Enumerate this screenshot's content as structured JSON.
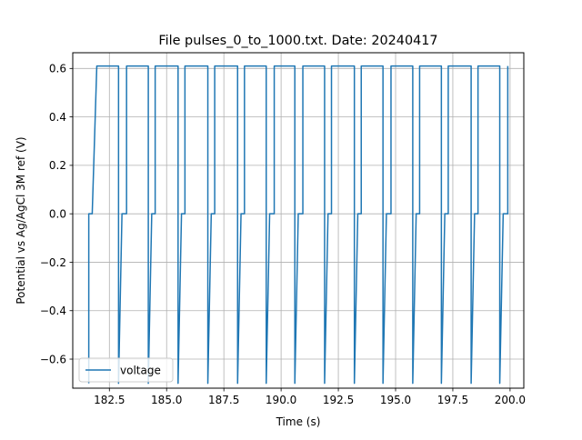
{
  "chart_data": {
    "type": "line",
    "title": "File pulses_0_to_1000.txt. Date: 20240417",
    "xlabel": "Time (s)",
    "ylabel": "Potential vs Ag/AgCl 3M ref (V)",
    "xlim": [
      80.85,
      200.6
    ],
    "ylim": [
      -0.72,
      0.665
    ],
    "xlim_display": [
      180.9,
      200.6
    ],
    "xticks": [
      182.5,
      185.0,
      187.5,
      190.0,
      192.5,
      195.0,
      197.5,
      200.0
    ],
    "xtick_labels": [
      "182.5",
      "185.0",
      "187.5",
      "190.0",
      "192.5",
      "195.0",
      "197.5",
      "200.0"
    ],
    "yticks": [
      -0.6,
      -0.4,
      -0.2,
      0.0,
      0.2,
      0.4,
      0.6
    ],
    "ytick_labels": [
      "−0.6",
      "−0.4",
      "−0.2",
      "0.0",
      "0.2",
      "0.4",
      "0.6"
    ],
    "grid": true,
    "legend_position": "lower-left",
    "series": [
      {
        "name": "voltage",
        "color": "#1f77b4",
        "pulses_high_v": 0.61,
        "pulses_mid_v": 0.0,
        "pulses_low_v": -0.7,
        "x": [
          181.6,
          181.6,
          181.75,
          181.95,
          181.95,
          182.9,
          182.9,
          183.05,
          183.25,
          183.25,
          184.2,
          184.2,
          184.35,
          184.5,
          184.5,
          185.5,
          185.5,
          185.65,
          185.8,
          185.8,
          186.8,
          186.8,
          186.95,
          187.1,
          187.1,
          188.1,
          188.1,
          188.25,
          188.4,
          188.4,
          189.35,
          189.35,
          189.5,
          189.7,
          189.7,
          190.6,
          190.6,
          190.75,
          190.95,
          190.95,
          191.9,
          191.9,
          192.05,
          192.2,
          192.2,
          193.2,
          193.2,
          193.35,
          193.5,
          193.5,
          194.45,
          194.45,
          194.6,
          194.8,
          194.8,
          195.75,
          195.75,
          195.9,
          196.05,
          196.05,
          197.0,
          197.0,
          197.15,
          197.3,
          197.3,
          198.3,
          198.3,
          198.45,
          198.6,
          198.6,
          199.55,
          199.55,
          199.7,
          199.9,
          199.9
        ],
        "y": [
          -0.7,
          0.0,
          0.0,
          0.61,
          0.61,
          0.61,
          -0.7,
          0.0,
          0.0,
          0.61,
          0.61,
          -0.7,
          0.0,
          0.0,
          0.61,
          0.61,
          -0.7,
          0.0,
          0.0,
          0.61,
          0.61,
          -0.7,
          0.0,
          0.0,
          0.61,
          0.61,
          -0.7,
          0.0,
          0.0,
          0.61,
          0.61,
          -0.7,
          0.0,
          0.0,
          0.61,
          0.61,
          -0.7,
          0.0,
          0.0,
          0.61,
          0.61,
          -0.7,
          0.0,
          0.0,
          0.61,
          0.61,
          -0.7,
          0.0,
          0.0,
          0.61,
          0.61,
          -0.7,
          0.0,
          0.0,
          0.61,
          0.61,
          -0.7,
          0.0,
          0.0,
          0.61,
          0.61,
          -0.7,
          0.0,
          0.0,
          0.61,
          0.61,
          -0.7,
          0.0,
          0.0,
          0.61,
          0.61,
          -0.7,
          0.0,
          0.0,
          0.61
        ]
      }
    ]
  }
}
